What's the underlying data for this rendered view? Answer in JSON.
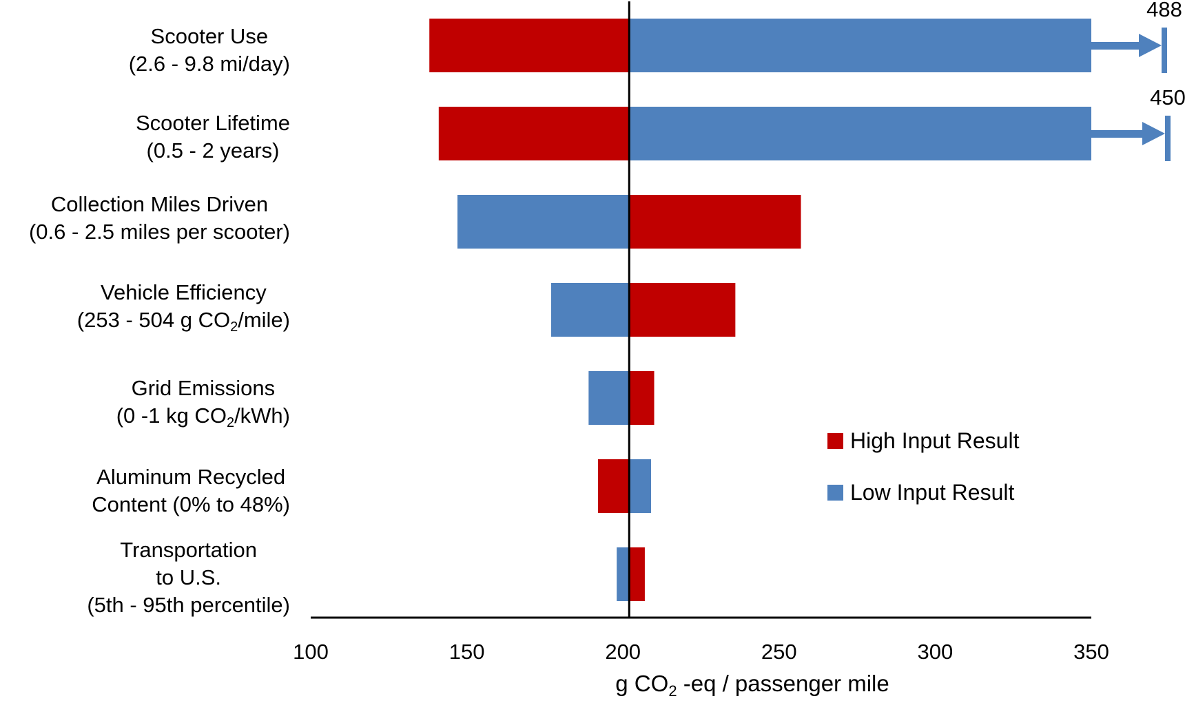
{
  "chart_data": {
    "type": "bar",
    "subtype": "tornado",
    "orientation": "horizontal",
    "baseline": 202,
    "xlabel": "g CO₂ -eq / passenger mile",
    "xlabel_parts": {
      "pre": "g CO",
      "sub": "2",
      "post": " -eq / passenger mile"
    },
    "xlim": [
      100,
      350
    ],
    "xticks": [
      100,
      150,
      200,
      250,
      300,
      350
    ],
    "grid": false,
    "legend_position": "right-middle",
    "colors": {
      "high": "#c00000",
      "low": "#4f81bd",
      "axis": "#000000"
    },
    "series": [
      {
        "name": "High Input Result",
        "key": "high",
        "color": "#c00000"
      },
      {
        "name": "Low Input Result",
        "key": "low",
        "color": "#4f81bd"
      }
    ],
    "categories": [
      {
        "lines": [
          {
            "text": "Scooter Use"
          },
          {
            "text": "(2.6 - 9.8 mi/day)"
          }
        ],
        "high": 138,
        "low": 488,
        "overflow": "low",
        "overflow_label": "488"
      },
      {
        "lines": [
          {
            "text": "Scooter Lifetime"
          },
          {
            "text": "(0.5 - 2 years)"
          }
        ],
        "high": 141,
        "low": 450,
        "overflow": "low",
        "overflow_label": "450"
      },
      {
        "lines": [
          {
            "text": "Collection Miles Driven"
          },
          {
            "text": "(0.6 - 2.5 miles per scooter)"
          }
        ],
        "high": 257,
        "low": 147
      },
      {
        "lines": [
          {
            "text": "Vehicle Efficiency"
          },
          {
            "text": "(253 - 504 g CO",
            "sub": "2",
            "post": "/mile)"
          }
        ],
        "high": 236,
        "low": 177
      },
      {
        "lines": [
          {
            "text": "Grid Emissions"
          },
          {
            "text": "(0 -1 kg CO",
            "sub": "2",
            "post": "/kWh)"
          }
        ],
        "high": 210,
        "low": 189
      },
      {
        "lines": [
          {
            "text": "Aluminum Recycled"
          },
          {
            "text": "Content (0% to 48%)"
          }
        ],
        "high": 192,
        "low": 209
      },
      {
        "lines": [
          {
            "text": "Transportation"
          },
          {
            "text": "to U.S."
          },
          {
            "text": "(5th - 95th percentile)"
          }
        ],
        "high": 207,
        "low": 198
      }
    ]
  }
}
